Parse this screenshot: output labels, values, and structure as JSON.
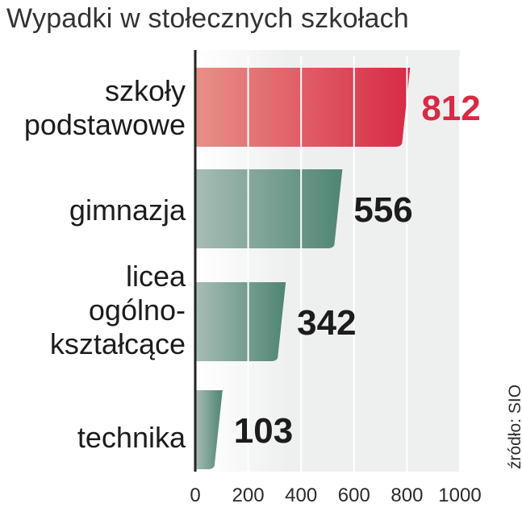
{
  "chart_data": {
    "type": "bar",
    "orientation": "horizontal",
    "title": "Wypadki w stołecznych szkołach",
    "categories": [
      "szkoły podstawowe",
      "gimnazja",
      "licea ogólno-kształcące",
      "technika"
    ],
    "category_lines": [
      [
        "szkoły",
        "podstawowe"
      ],
      [
        "gimnazja"
      ],
      [
        "licea",
        "ogólno-",
        "kształcące"
      ],
      [
        "technika"
      ]
    ],
    "values": [
      812,
      556,
      342,
      103
    ],
    "value_labels": [
      "812",
      "556",
      "342",
      "103"
    ],
    "xlim": [
      0,
      1000
    ],
    "x_ticks": [
      "0",
      "200",
      "400",
      "600",
      "800",
      "1000"
    ],
    "grid": true,
    "highlight_index": 0,
    "colors": {
      "highlight_start": "#e89088",
      "highlight_end": "#d72a45",
      "bar_start": "#a7bdb6",
      "bar_end": "#4f8573",
      "highlight_label": "#d72a45",
      "label": "#1c1c1c",
      "band": "#eef0ef",
      "grid": "#ffffff",
      "axis": "#222222"
    }
  },
  "source": "źródło: SIO"
}
